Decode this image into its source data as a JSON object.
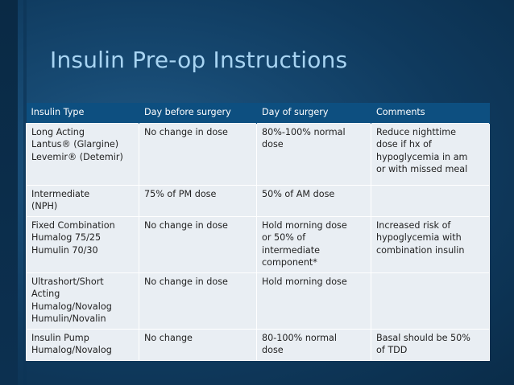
{
  "slide": {
    "title": "Insulin Pre-op Instructions"
  },
  "table": {
    "headers": [
      "Insulin Type",
      "Day before surgery",
      "Day of surgery",
      "Comments"
    ],
    "rows": [
      [
        "Long Acting\nLantus® (Glargine)\nLevemir® (Detemir)",
        "No change in dose",
        "80%-100% normal\ndose",
        "Reduce nighttime\ndose if hx of\nhypoglycemia in am\nor with missed meal"
      ],
      [
        "Intermediate\n(NPH)",
        "75% of PM dose",
        "50% of AM dose",
        ""
      ],
      [
        "Fixed Combination\nHumalog 75/25\nHumulin 70/30",
        "No change in dose",
        "Hold morning dose\nor 50% of\nintermediate\ncomponent*",
        "Increased risk of\nhypoglycemia with\ncombination insulin"
      ],
      [
        "Ultrashort/Short\nActing\nHumalog/Novalog\nHumulin/Novalin",
        "No change in dose",
        "Hold morning dose",
        ""
      ],
      [
        "Insulin Pump\nHumalog/Novalog",
        "No change",
        "80-100% normal\ndose",
        "Basal should be 50%\nof TDD"
      ]
    ]
  },
  "colors": {
    "background": "#174a73",
    "title": "#a8d4f2",
    "header_fill": "#0d4f80",
    "cell_fill": "#e9eef3"
  }
}
